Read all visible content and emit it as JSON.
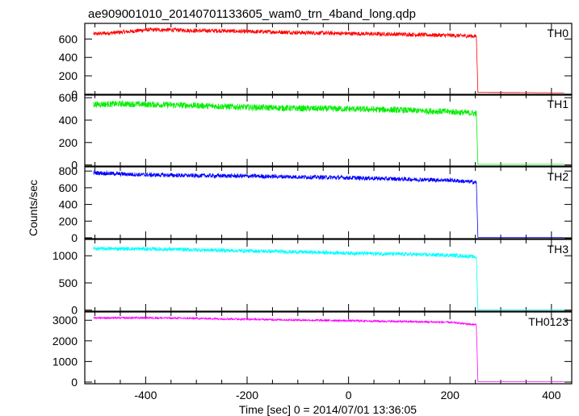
{
  "chart_data": {
    "type": "line",
    "title": "ae909001010_20140701133605_wam0_trn_4band_long.qdp",
    "xlabel": "Time [sec] 0 = 2014/07/01 13:36:05",
    "ylabel": "Counts/sec",
    "xlim": [
      -520,
      440
    ],
    "xticks": [
      -400,
      -200,
      0,
      200,
      400
    ],
    "grid": false,
    "cutoff_time": 252,
    "x_start": -503,
    "x_end": 425,
    "panels": [
      {
        "name": "TH0",
        "color": "#ff0000",
        "ylim": [
          -10,
          770
        ],
        "yticks": [
          0,
          200,
          400,
          600
        ],
        "points": [
          [
            -503,
            655
          ],
          [
            -470,
            665
          ],
          [
            -430,
            682
          ],
          [
            -400,
            700
          ],
          [
            -350,
            700
          ],
          [
            -300,
            690
          ],
          [
            -250,
            690
          ],
          [
            -200,
            680
          ],
          [
            -150,
            678
          ],
          [
            -100,
            670
          ],
          [
            -50,
            665
          ],
          [
            0,
            660
          ],
          [
            50,
            655
          ],
          [
            100,
            652
          ],
          [
            150,
            645
          ],
          [
            200,
            640
          ],
          [
            252,
            630
          ],
          [
            255,
            20
          ],
          [
            425,
            15
          ]
        ],
        "noise": 22
      },
      {
        "name": "TH1",
        "color": "#00ee00",
        "ylim": [
          -10,
          630
        ],
        "yticks": [
          0,
          200,
          400,
          600
        ],
        "points": [
          [
            -503,
            540
          ],
          [
            -450,
            545
          ],
          [
            -400,
            540
          ],
          [
            -300,
            530
          ],
          [
            -200,
            515
          ],
          [
            -100,
            505
          ],
          [
            0,
            500
          ],
          [
            100,
            490
          ],
          [
            200,
            475
          ],
          [
            252,
            460
          ],
          [
            255,
            5
          ],
          [
            425,
            5
          ]
        ],
        "noise": 28
      },
      {
        "name": "TH2",
        "color": "#0000ff",
        "ylim": [
          -10,
          850
        ],
        "yticks": [
          0,
          200,
          400,
          600,
          800
        ],
        "points": [
          [
            -503,
            780
          ],
          [
            -450,
            765
          ],
          [
            -400,
            755
          ],
          [
            -300,
            745
          ],
          [
            -200,
            740
          ],
          [
            -100,
            730
          ],
          [
            0,
            720
          ],
          [
            100,
            705
          ],
          [
            200,
            690
          ],
          [
            252,
            665
          ],
          [
            255,
            5
          ],
          [
            425,
            5
          ]
        ],
        "noise": 25
      },
      {
        "name": "TH3",
        "color": "#00ffff",
        "ylim": [
          -20,
          1300
        ],
        "yticks": [
          0,
          500,
          1000
        ],
        "points": [
          [
            -503,
            1130
          ],
          [
            -450,
            1130
          ],
          [
            -400,
            1125
          ],
          [
            -300,
            1110
          ],
          [
            -200,
            1090
          ],
          [
            -100,
            1070
          ],
          [
            0,
            1050
          ],
          [
            100,
            1030
          ],
          [
            200,
            1010
          ],
          [
            252,
            980
          ],
          [
            255,
            5
          ],
          [
            425,
            5
          ]
        ],
        "noise": 35
      },
      {
        "name": "TH0123",
        "color": "#ff00ff",
        "ylim": [
          -80,
          3400
        ],
        "yticks": [
          0,
          1000,
          2000,
          3000
        ],
        "points": [
          [
            -503,
            3120
          ],
          [
            -450,
            3110
          ],
          [
            -400,
            3120
          ],
          [
            -300,
            3090
          ],
          [
            -200,
            3050
          ],
          [
            -100,
            3010
          ],
          [
            0,
            2980
          ],
          [
            100,
            2940
          ],
          [
            200,
            2900
          ],
          [
            252,
            2780
          ],
          [
            255,
            20
          ],
          [
            425,
            20
          ]
        ],
        "noise": 45
      }
    ]
  }
}
